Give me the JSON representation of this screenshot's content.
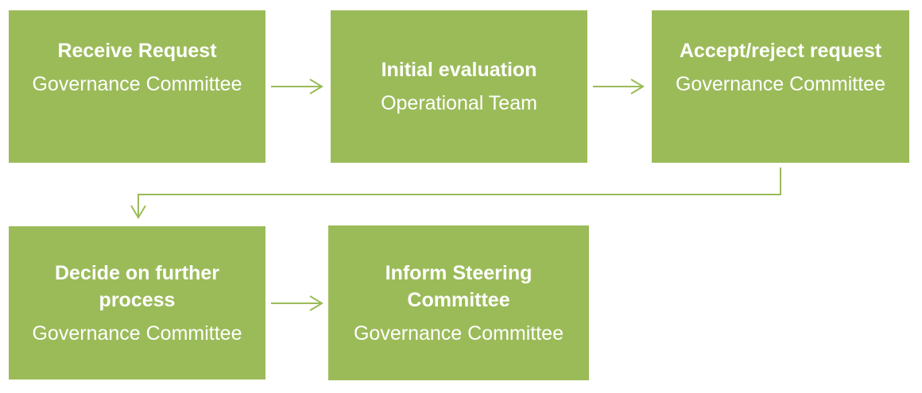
{
  "colors": {
    "box_fill": "#9bbb59",
    "text": "#ffffff",
    "arrow": "#9bbb59"
  },
  "steps": [
    {
      "title": "Receive Request",
      "owner": "Governance Committee"
    },
    {
      "title": "Initial evaluation",
      "owner": "Operational Team"
    },
    {
      "title": "Accept/reject request",
      "owner": "Governance Committee"
    },
    {
      "title": "Decide on further process",
      "owner": "Governance Committee"
    },
    {
      "title": "Inform Steering Committee",
      "owner": "Governance Committee"
    }
  ]
}
